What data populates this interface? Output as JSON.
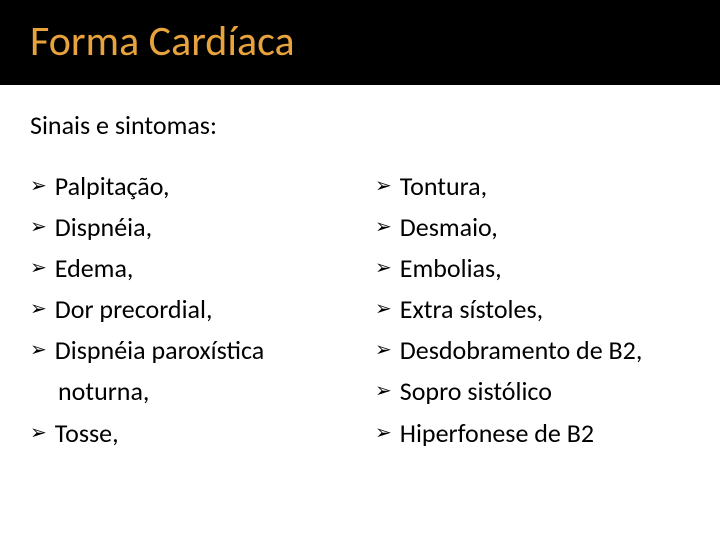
{
  "title": "Forma Cardíaca",
  "subtitle": "Sinais e sintomas:",
  "colors": {
    "title_bar_bg": "#000000",
    "title_text": "#e8a33d",
    "body_bg": "#ffffff",
    "body_text": "#000000",
    "bullet_color": "#000000"
  },
  "typography": {
    "title_fontsize": 42,
    "subtitle_fontsize": 26,
    "item_fontsize": 26,
    "font_family": "Calibri"
  },
  "bullet_glyph": "➢",
  "columns": [
    {
      "items": [
        {
          "text": "Palpitação,"
        },
        {
          "text": "Dispnéia,"
        },
        {
          "text": "Edema,"
        },
        {
          "text": "Dor precordial,"
        },
        {
          "text": "Dispnéia paroxística",
          "continuation": "noturna,"
        },
        {
          "text": "Tosse,"
        }
      ]
    },
    {
      "items": [
        {
          "text": "Tontura,"
        },
        {
          "text": "Desmaio,"
        },
        {
          "text": "Embolias,"
        },
        {
          "text": "Extra sístoles,"
        },
        {
          "text": "Desdobramento de B2,"
        },
        {
          "text": "Sopro sistólico"
        },
        {
          "text": " Hiperfonese de B2"
        }
      ]
    }
  ]
}
